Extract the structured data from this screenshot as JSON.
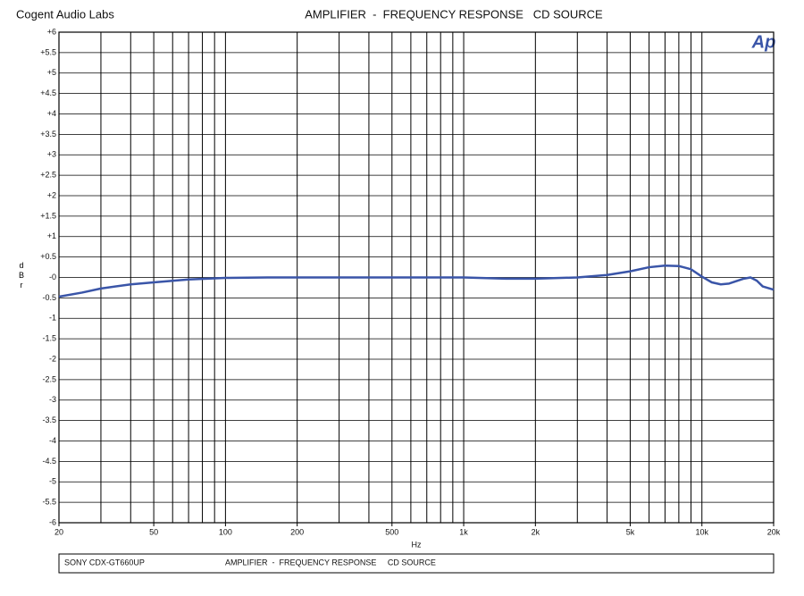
{
  "brand": "Cogent Audio Labs",
  "logo": "Ap",
  "footer": {
    "left": "SONY CDX-GT660UP",
    "right": "AMPLIFIER  -  FREQUENCY RESPONSE     CD SOURCE"
  },
  "chart_data": {
    "type": "line",
    "title": "AMPLIFIER  -  FREQUENCY RESPONSE   CD SOURCE",
    "xlabel": "Hz",
    "ylabel": "dBr",
    "xscale": "log",
    "grid": true,
    "xlim": [
      20,
      20000
    ],
    "ylim": [
      -6,
      6
    ],
    "xticks": [
      20,
      50,
      100,
      200,
      500,
      {
        "value": 1000,
        "label": "1k"
      },
      {
        "value": 2000,
        "label": "2k"
      },
      {
        "value": 5000,
        "label": "5k"
      },
      {
        "value": 10000,
        "label": "10k"
      },
      {
        "value": 20000,
        "label": "20k"
      }
    ],
    "x_grid": [
      20,
      30,
      40,
      50,
      60,
      70,
      80,
      90,
      100,
      200,
      300,
      400,
      500,
      600,
      700,
      800,
      900,
      1000,
      2000,
      3000,
      4000,
      5000,
      6000,
      7000,
      8000,
      9000,
      10000,
      20000
    ],
    "yticks": [
      {
        "value": 6,
        "label": "+6"
      },
      {
        "value": 5.5,
        "label": "+5.5"
      },
      {
        "value": 5,
        "label": "+5"
      },
      {
        "value": 4.5,
        "label": "+4.5"
      },
      {
        "value": 4,
        "label": "+4"
      },
      {
        "value": 3.5,
        "label": "+3.5"
      },
      {
        "value": 3,
        "label": "+3"
      },
      {
        "value": 2.5,
        "label": "+2.5"
      },
      {
        "value": 2,
        "label": "+2"
      },
      {
        "value": 1.5,
        "label": "+1.5"
      },
      {
        "value": 1,
        "label": "+1"
      },
      {
        "value": 0.5,
        "label": "+0.5"
      },
      {
        "value": 0,
        "label": "-0"
      },
      -0.5,
      -1,
      -1.5,
      -2,
      -2.5,
      -3,
      -3.5,
      -4,
      -4.5,
      -5,
      -5.5,
      -6
    ],
    "x": [
      20,
      25,
      30,
      40,
      50,
      70,
      100,
      150,
      200,
      500,
      1000,
      1500,
      2000,
      3000,
      4000,
      5000,
      6000,
      7000,
      8000,
      9000,
      10000,
      11000,
      12000,
      13000,
      15000,
      16000,
      17000,
      18000,
      20000
    ],
    "series": [
      {
        "color": "#3a55a8",
        "values": [
          -0.47,
          -0.37,
          -0.27,
          -0.17,
          -0.12,
          -0.05,
          -0.01,
          0.0,
          0.0,
          0.0,
          0.0,
          -0.03,
          -0.03,
          0.0,
          0.06,
          0.15,
          0.25,
          0.29,
          0.28,
          0.2,
          0.02,
          -0.12,
          -0.17,
          -0.15,
          -0.03,
          0.0,
          -0.08,
          -0.22,
          -0.3
        ]
      }
    ]
  }
}
